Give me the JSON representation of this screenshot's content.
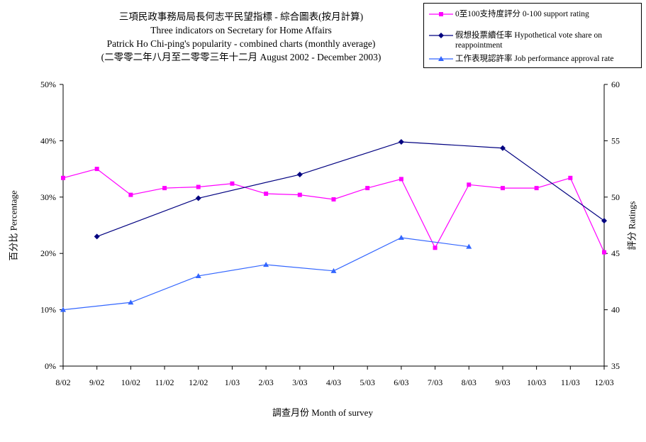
{
  "chart_data": {
    "type": "line",
    "title": "三項民政事務局局長何志平民望指標 - 綜合圖表(按月計算)",
    "subtitle_lines": [
      "Three indicators on Secretary for Home Affairs",
      "Patrick Ho Chi-ping's popularity - combined charts (monthly average)",
      "(二零零二年八月至二零零三年十二月 August 2002 - December 2003)"
    ],
    "xlabel": "調查月份 Month of survey",
    "ylabel_left": "百分比 Percentage",
    "ylabel_right": "評分 Ratings",
    "categories": [
      "8/02",
      "9/02",
      "10/02",
      "11/02",
      "12/02",
      "1/03",
      "2/03",
      "3/03",
      "4/03",
      "5/03",
      "6/03",
      "7/03",
      "8/03",
      "9/03",
      "10/03",
      "11/03",
      "12/03"
    ],
    "y_left": {
      "ticks": [
        "0%",
        "10%",
        "20%",
        "30%",
        "40%",
        "50%"
      ],
      "min": 0,
      "max": 50
    },
    "y_right": {
      "ticks": [
        "35",
        "40",
        "45",
        "50",
        "55",
        "60"
      ],
      "min": 35,
      "max": 60
    },
    "grid": false,
    "legend_position": "top-right",
    "series": [
      {
        "name": "0至100支持度評分 0-100 support rating",
        "axis": "right",
        "color": "#ff00ff",
        "marker": "square",
        "values": [
          51.7,
          52.5,
          50.2,
          50.8,
          50.9,
          51.2,
          50.3,
          50.2,
          49.8,
          50.8,
          51.6,
          45.5,
          51.1,
          50.8,
          50.8,
          51.7,
          45.1
        ]
      },
      {
        "name": "假想投票續任率 Hypothetical vote share on reappointment",
        "axis": "left",
        "color": "#000080",
        "marker": "diamond",
        "values": [
          null,
          23.0,
          null,
          null,
          29.8,
          null,
          null,
          34.0,
          null,
          null,
          39.8,
          null,
          null,
          38.7,
          null,
          null,
          25.8
        ]
      },
      {
        "name": "工作表現認許率 Job performance approval rate",
        "axis": "left",
        "color": "#3366ff",
        "marker": "triangle",
        "values": [
          10.0,
          null,
          11.3,
          null,
          16.0,
          null,
          18.0,
          null,
          16.9,
          null,
          22.8,
          null,
          21.2,
          null,
          null,
          null,
          null
        ]
      }
    ]
  }
}
